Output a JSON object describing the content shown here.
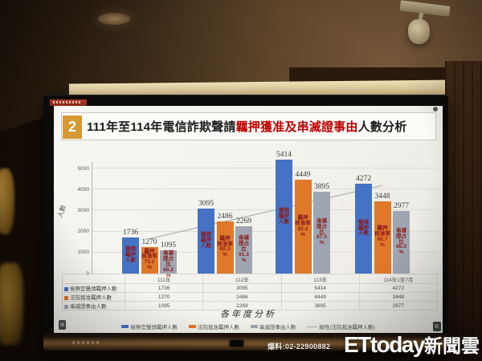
{
  "slide": {
    "badge": "2",
    "title": {
      "prefix": "111年至114年電信詐欺聲請",
      "highlight": "羈押獲准及串滅證事由",
      "suffix": "人數分析"
    },
    "y_axis_title": "人數",
    "x_axis_title": "各年度分析"
  },
  "chart_data": {
    "type": "bar",
    "title": "111年至114年電信詐欺聲請羈押獲准及串滅證事由人數分析",
    "categories": [
      "111年",
      "112年",
      "113年",
      "114年1至7月"
    ],
    "series": [
      {
        "name": "檢察官聲請羈押人數",
        "color": "#4472c4",
        "values": [
          1736,
          3095,
          5414,
          4272
        ],
        "bar_text_lines": [
          "聲請",
          "羈押",
          "人數"
        ]
      },
      {
        "name": "法院裁准羈押人數",
        "color": "#e0782a",
        "values": [
          1270,
          2486,
          4449,
          3448
        ],
        "bar_text_lines": [
          "羈押",
          "核准率"
        ],
        "pct": [
          "73.2",
          "80.3",
          "82.2",
          "80.7"
        ]
      },
      {
        "name": "串滅證事由人數",
        "color": "#9fa6b2",
        "values": [
          1095,
          2269,
          3895,
          2977
        ],
        "bar_text_lines": [
          "串滅",
          "證占",
          "比"
        ],
        "pct": [
          "86.2",
          "91.3",
          "87.5",
          "86.3"
        ]
      }
    ],
    "trendline": {
      "name": "線性(法院裁准羈押人數)",
      "of_series": "法院裁准羈押人數",
      "color": "#a9aeb6"
    },
    "xlabel": "各年度分析",
    "ylabel": "人數",
    "ylim": [
      0,
      5000
    ],
    "yticks": [
      0,
      1000,
      2000,
      3000,
      4000,
      5000
    ],
    "grid": true,
    "legend_position": "bottom"
  },
  "table": {
    "col_headers": [
      "111年",
      "112年",
      "113年",
      "114年1至7月"
    ],
    "rows": [
      {
        "label": "檢察官聲請羈押人數",
        "color": "#4472c4",
        "values": [
          "1736",
          "3095",
          "5414",
          "4272"
        ]
      },
      {
        "label": "法院裁准羈押人數",
        "color": "#e0782a",
        "values": [
          "1270",
          "2486",
          "4449",
          "3448"
        ]
      },
      {
        "label": "串滅證事由人數",
        "color": "#9fa6b2",
        "values": [
          "1095",
          "2269",
          "3895",
          "2977"
        ]
      }
    ]
  },
  "watermark": {
    "phone": "爆料:02-22900882",
    "brand_en": "ETtoday",
    "brand_zh": "新聞雲"
  }
}
